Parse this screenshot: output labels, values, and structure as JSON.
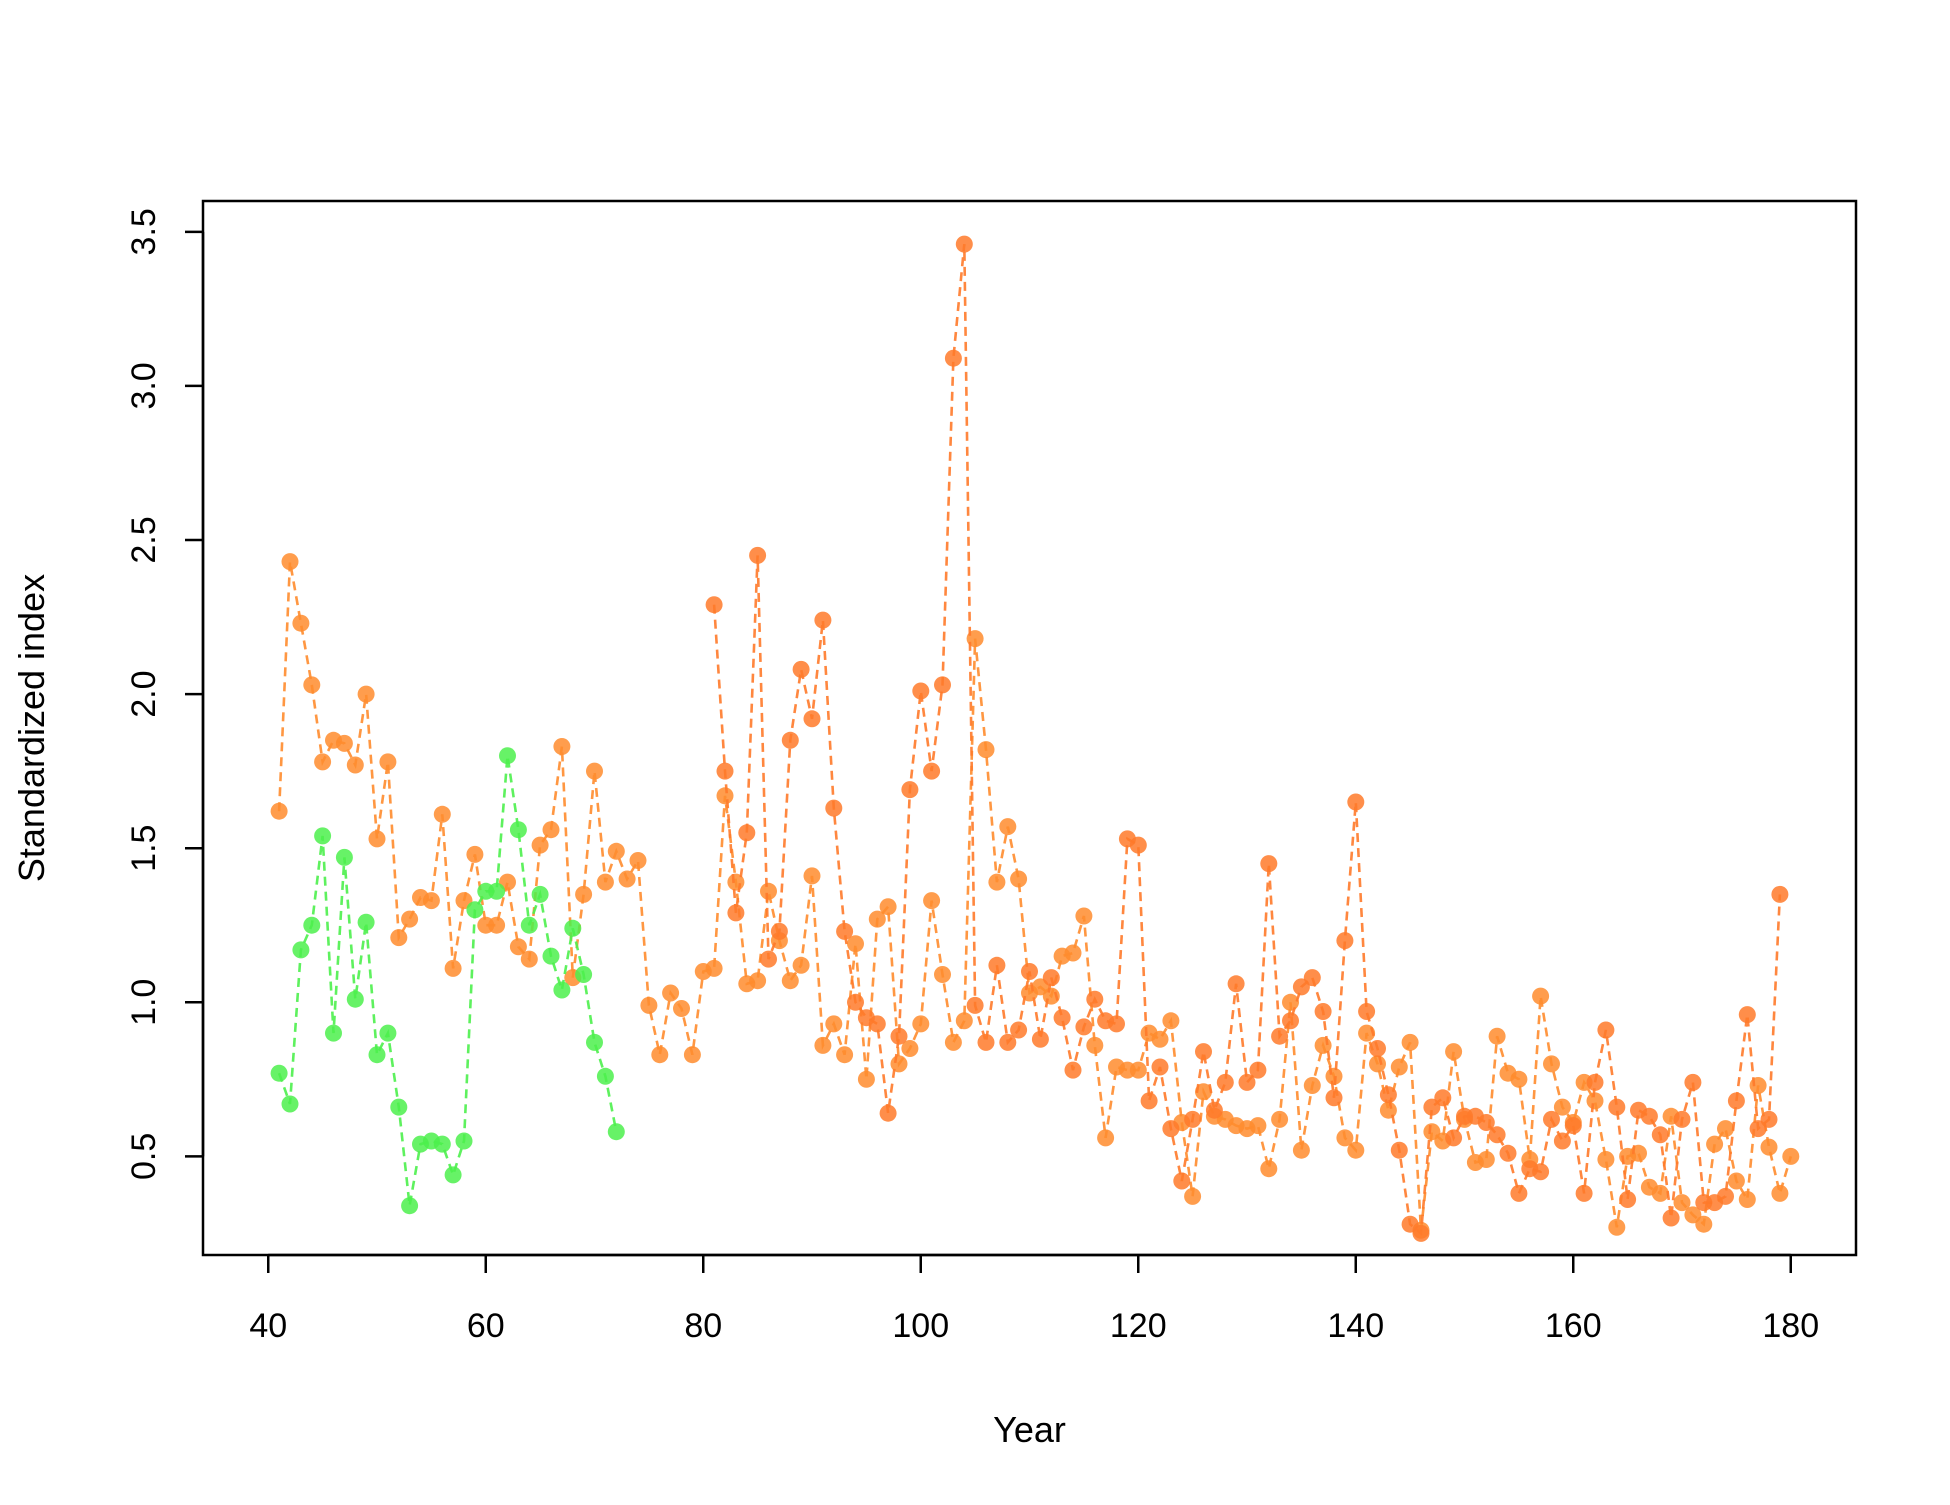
{
  "chart_data": {
    "type": "scatter",
    "title": "",
    "xlabel": "Year",
    "ylabel": "Standardized index",
    "xlim": [
      34,
      186
    ],
    "ylim": [
      0.18,
      3.6
    ],
    "xticks": [
      40,
      60,
      80,
      100,
      120,
      140,
      160,
      180
    ],
    "xtick_labels": [
      "40",
      "60",
      "80",
      "100",
      "120",
      "140",
      "160",
      "180"
    ],
    "yticks": [
      0.5,
      1.0,
      1.5,
      2.0,
      2.5,
      3.0,
      3.5
    ],
    "ytick_labels": [
      "0.5",
      "1.0",
      "1.5",
      "2.0",
      "2.5",
      "3.0",
      "3.5"
    ],
    "grid": false,
    "legend": "none",
    "line_style": "dashed",
    "series": [
      {
        "color": "#ff8c2e",
        "x": [
          41,
          42,
          43,
          44,
          45,
          46,
          47,
          48,
          49,
          50,
          51,
          52,
          53,
          54,
          55,
          56,
          57,
          58,
          59,
          60,
          61,
          62,
          63,
          64,
          65,
          66,
          67,
          68,
          69,
          70,
          71,
          72,
          73,
          74,
          75,
          76,
          77,
          78,
          79,
          80,
          81,
          82,
          83,
          84,
          85,
          86,
          87,
          88,
          89,
          90,
          91,
          92,
          93,
          94,
          95,
          96,
          97,
          98,
          99,
          100,
          101,
          102,
          103,
          104,
          105,
          106,
          107,
          108,
          109,
          110,
          111,
          112,
          113,
          114,
          115,
          116,
          117,
          118,
          119,
          120,
          121,
          122,
          123,
          124,
          125,
          126,
          127,
          128,
          129,
          130,
          131,
          132,
          133,
          134,
          135,
          136,
          137,
          138,
          139,
          140,
          141,
          142,
          143,
          144,
          145,
          146,
          147,
          148,
          149,
          150,
          151,
          152,
          153,
          154,
          155,
          156,
          157,
          158,
          159,
          160,
          161,
          162,
          163,
          164,
          165,
          166,
          167,
          168,
          169,
          170,
          171,
          172,
          173,
          174,
          175,
          176,
          177,
          178,
          179,
          180
        ],
        "y": [
          1.62,
          2.43,
          2.23,
          2.03,
          1.78,
          1.85,
          1.84,
          1.77,
          2.0,
          1.53,
          1.78,
          1.21,
          1.27,
          1.34,
          1.33,
          1.61,
          1.11,
          1.33,
          1.48,
          1.25,
          1.25,
          1.39,
          1.18,
          1.14,
          1.51,
          1.56,
          1.83,
          1.08,
          1.35,
          1.75,
          1.39,
          1.49,
          1.4,
          1.46,
          0.99,
          0.83,
          1.03,
          0.98,
          0.83,
          1.1,
          1.11,
          1.67,
          1.39,
          1.06,
          1.07,
          1.36,
          1.2,
          1.07,
          1.12,
          1.41,
          0.86,
          0.93,
          0.83,
          1.19,
          0.75,
          1.27,
          1.31,
          0.8,
          0.85,
          0.93,
          1.33,
          1.09,
          0.87,
          0.94,
          2.18,
          1.82,
          1.39,
          1.57,
          1.4,
          1.03,
          1.05,
          1.02,
          1.15,
          1.16,
          1.28,
          0.86,
          0.56,
          0.79,
          0.78,
          0.78,
          0.9,
          0.88,
          0.94,
          0.61,
          0.37,
          0.71,
          0.63,
          0.62,
          0.6,
          0.59,
          0.6,
          0.46,
          0.62,
          1.0,
          0.52,
          0.73,
          0.86,
          0.76,
          0.56,
          0.52,
          0.9,
          0.8,
          0.65,
          0.79,
          0.87,
          0.26,
          0.58,
          0.55,
          0.84,
          0.62,
          0.48,
          0.49,
          0.89,
          0.77,
          0.75,
          0.49,
          1.02,
          0.8,
          0.66,
          0.61,
          0.74,
          0.68,
          0.49,
          0.27,
          0.5,
          0.51,
          0.4,
          0.38,
          0.63,
          0.35,
          0.31,
          0.28,
          0.54,
          0.59,
          0.42,
          0.36,
          0.73,
          0.53,
          0.38,
          0.5
        ]
      },
      {
        "color": "#ff7a2a",
        "x": [
          81,
          82,
          83,
          84,
          85,
          86,
          87,
          88,
          89,
          90,
          91,
          92,
          93,
          94,
          95,
          96,
          97,
          98,
          99,
          100,
          101,
          102,
          103,
          104,
          105,
          106,
          107,
          108,
          109,
          110,
          111,
          112,
          113,
          114,
          115,
          116,
          117,
          118,
          119,
          120,
          121,
          122,
          123,
          124,
          125,
          126,
          127,
          128,
          129,
          130,
          131,
          132,
          133,
          134,
          135,
          136,
          137,
          138,
          139,
          140,
          141,
          142,
          143,
          144,
          145,
          146,
          147,
          148,
          149,
          150,
          151,
          152,
          153,
          154,
          155,
          156,
          157,
          158,
          159,
          160,
          161,
          162,
          163,
          164,
          165,
          166,
          167,
          168,
          169,
          170,
          171,
          172,
          173,
          174,
          175,
          176,
          177,
          178,
          179
        ],
        "y": [
          2.29,
          1.75,
          1.29,
          1.55,
          2.45,
          1.14,
          1.23,
          1.85,
          2.08,
          1.92,
          2.24,
          1.63,
          1.23,
          1.0,
          0.95,
          0.93,
          0.64,
          0.89,
          1.69,
          2.01,
          1.75,
          2.03,
          3.09,
          3.46,
          0.99,
          0.87,
          1.12,
          0.87,
          0.91,
          1.1,
          0.88,
          1.08,
          0.95,
          0.78,
          0.92,
          1.01,
          0.94,
          0.93,
          1.53,
          1.51,
          0.68,
          0.79,
          0.59,
          0.42,
          0.62,
          0.84,
          0.65,
          0.74,
          1.06,
          0.74,
          0.78,
          1.45,
          0.89,
          0.94,
          1.05,
          1.08,
          0.97,
          0.69,
          1.2,
          1.65,
          0.97,
          0.85,
          0.7,
          0.52,
          0.28,
          0.25,
          0.66,
          0.69,
          0.56,
          0.63,
          0.63,
          0.61,
          0.57,
          0.51,
          0.38,
          0.46,
          0.45,
          0.62,
          0.55,
          0.6,
          0.38,
          0.74,
          0.91,
          0.66,
          0.36,
          0.65,
          0.63,
          0.57,
          0.3,
          0.62,
          0.74,
          0.35,
          0.35,
          0.37,
          0.68,
          0.96,
          0.59,
          0.62,
          1.35
        ]
      },
      {
        "color": "#4cf04c",
        "x": [
          41,
          42,
          43,
          44,
          45,
          46,
          47,
          48,
          49,
          50,
          51,
          52,
          53,
          54,
          55,
          56,
          57,
          58,
          59,
          60,
          61,
          62,
          63,
          64,
          65,
          66,
          67,
          68,
          69,
          70,
          71,
          72
        ],
        "y": [
          0.77,
          0.67,
          1.17,
          1.25,
          1.54,
          0.9,
          1.47,
          1.01,
          1.26,
          0.83,
          0.9,
          0.66,
          0.34,
          0.54,
          0.55,
          0.54,
          0.44,
          0.55,
          1.3,
          1.36,
          1.36,
          1.8,
          1.56,
          1.25,
          1.35,
          1.15,
          1.04,
          1.24,
          1.09,
          0.87,
          0.76,
          0.58
        ]
      }
    ]
  }
}
